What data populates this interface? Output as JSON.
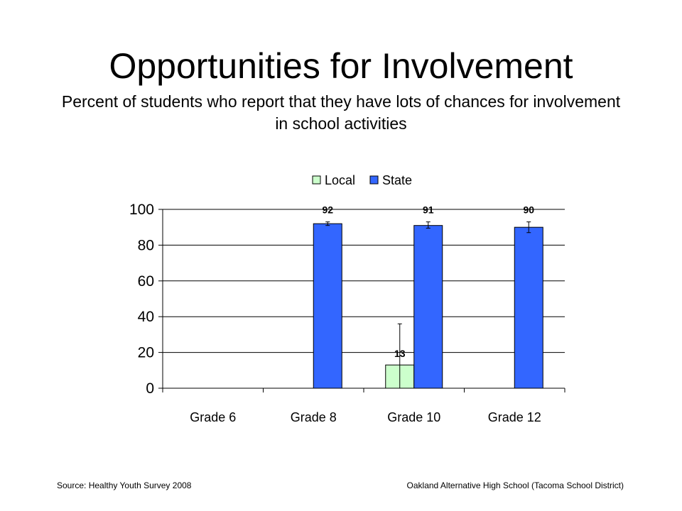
{
  "slide": {
    "title": "Opportunities for Involvement",
    "subtitle": "Percent of students who report that they have lots of chances for involvement in school activities",
    "source": "Source: Healthy Youth Survey 2008",
    "school": "Oakland Alternative High School (Tacoma School District)"
  },
  "chart_data": {
    "type": "bar",
    "categories": [
      "Grade 6",
      "Grade 8",
      "Grade 10",
      "Grade 12"
    ],
    "series": [
      {
        "name": "Local",
        "values": [
          null,
          null,
          13,
          null
        ],
        "error_low": [
          null,
          null,
          0,
          null
        ],
        "error_high": [
          null,
          null,
          36,
          null
        ],
        "color": "#ccffcc"
      },
      {
        "name": "State",
        "values": [
          null,
          92,
          91,
          90
        ],
        "error_low": [
          null,
          91,
          89.5,
          87
        ],
        "error_high": [
          null,
          93,
          93,
          93
        ],
        "color": "#3366ff"
      }
    ],
    "data_labels": [
      {
        "series": "Local",
        "category": "Grade 10",
        "text": "13"
      },
      {
        "series": "State",
        "category": "Grade 8",
        "text": "92"
      },
      {
        "series": "State",
        "category": "Grade 10",
        "text": "91"
      },
      {
        "series": "State",
        "category": "Grade 12",
        "text": "90"
      }
    ],
    "y_ticks": [
      "0",
      "20",
      "40",
      "60",
      "80",
      "100"
    ],
    "ylim": [
      0,
      100
    ],
    "grid": true,
    "legend_position": "top"
  }
}
